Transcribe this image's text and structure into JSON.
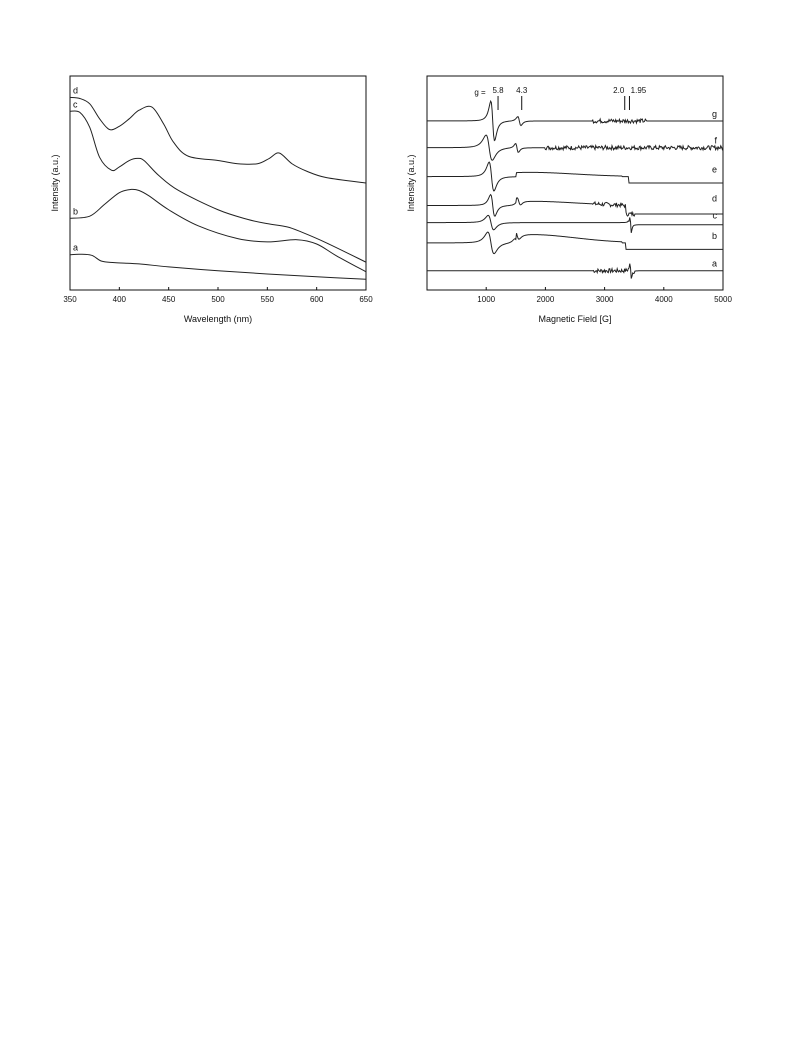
{
  "chart_data": [
    {
      "type": "line",
      "title": "",
      "xlabel": "Wavelength (nm)",
      "ylabel": "Intensity (a.u.)",
      "xlim": [
        350,
        650
      ],
      "ylim": [
        0,
        1
      ],
      "x_ticks": [
        350,
        400,
        450,
        500,
        550,
        600,
        650
      ],
      "y_ticks": [],
      "grid": false,
      "series": [
        {
          "name": "a",
          "x": [
            350,
            360,
            372,
            382,
            395,
            420,
            450,
            500,
            550,
            600,
            650
          ],
          "y": [
            0.165,
            0.167,
            0.162,
            0.135,
            0.128,
            0.122,
            0.108,
            0.09,
            0.075,
            0.062,
            0.05
          ]
        },
        {
          "name": "b",
          "x": [
            350,
            370,
            385,
            400,
            412,
            420,
            430,
            450,
            480,
            520,
            550,
            580,
            600,
            620,
            650
          ],
          "y": [
            0.335,
            0.345,
            0.4,
            0.455,
            0.47,
            0.465,
            0.44,
            0.375,
            0.3,
            0.24,
            0.225,
            0.235,
            0.215,
            0.16,
            0.085
          ]
        },
        {
          "name": "c",
          "x": [
            350,
            360,
            370,
            380,
            392,
            400,
            410,
            418,
            425,
            440,
            460,
            500,
            530,
            550,
            570,
            585,
            610,
            650
          ],
          "y": [
            0.835,
            0.83,
            0.76,
            0.62,
            0.56,
            0.575,
            0.605,
            0.615,
            0.605,
            0.535,
            0.465,
            0.375,
            0.33,
            0.31,
            0.295,
            0.27,
            0.22,
            0.13
          ]
        },
        {
          "name": "d",
          "x": [
            350,
            360,
            370,
            380,
            390,
            400,
            410,
            420,
            433,
            445,
            455,
            470,
            500,
            520,
            540,
            552,
            562,
            575,
            590,
            610,
            650
          ],
          "y": [
            0.9,
            0.895,
            0.87,
            0.8,
            0.75,
            0.765,
            0.8,
            0.84,
            0.855,
            0.775,
            0.69,
            0.625,
            0.605,
            0.59,
            0.59,
            0.615,
            0.64,
            0.59,
            0.555,
            0.525,
            0.5
          ]
        }
      ]
    },
    {
      "type": "line",
      "title": "",
      "xlabel": "Magnetic Field [G]",
      "ylabel": "Intensity (a.u.)",
      "xlim": [
        0,
        5000
      ],
      "ylim": [
        0,
        1
      ],
      "x_ticks": [
        1000,
        2000,
        3000,
        4000,
        5000
      ],
      "y_ticks": [],
      "grid": false,
      "g_markers": {
        "prefix": "g =",
        "items": [
          {
            "label": "5.8",
            "field": 1200
          },
          {
            "label": "4.3",
            "field": 1600
          },
          {
            "label": "2.0",
            "field": 3340
          },
          {
            "label": "1.95",
            "field": 3420
          }
        ]
      },
      "series": [
        {
          "name": "a",
          "baseline": 0.09,
          "peaks": [
            {
              "at": 3440,
              "amp": 0.035,
              "width": 20
            }
          ],
          "noise_from": 2800,
          "noise_to": 3500
        },
        {
          "name": "b",
          "baseline": 0.22,
          "peaks": [
            {
              "at": 1080,
              "amp": 0.06,
              "width": 90
            },
            {
              "at": 1520,
              "amp": 0.025,
              "width": 60
            }
          ],
          "hump": 0.04,
          "step_at": 3350,
          "step": -0.03
        },
        {
          "name": "c",
          "baseline": 0.315,
          "peaks": [
            {
              "at": 1080,
              "amp": 0.04,
              "width": 80
            },
            {
              "at": 3440,
              "amp": 0.045,
              "width": 18
            }
          ],
          "step_at": 3400,
          "step": -0.01
        },
        {
          "name": "d",
          "baseline": 0.395,
          "peaks": [
            {
              "at": 1110,
              "amp": 0.06,
              "width": 60
            },
            {
              "at": 1550,
              "amp": 0.02,
              "width": 50
            }
          ],
          "hump": 0.02,
          "noise_from": 2800,
          "noise_to": 3500,
          "step_at": 3350,
          "step": -0.04
        },
        {
          "name": "e",
          "baseline": 0.53,
          "peaks": [
            {
              "at": 1090,
              "amp": 0.08,
              "width": 70
            }
          ],
          "hump": 0.02,
          "step_at": 3400,
          "step": -0.03
        },
        {
          "name": "f",
          "baseline": 0.665,
          "peaks": [
            {
              "at": 1050,
              "amp": 0.07,
              "width": 90
            },
            {
              "at": 1520,
              "amp": 0.025,
              "width": 40
            }
          ],
          "noise_from": 2000,
          "noise_to": 5000
        },
        {
          "name": "g",
          "baseline": 0.79,
          "peaks": [
            {
              "at": 1110,
              "amp": 0.11,
              "width": 55
            },
            {
              "at": 1560,
              "amp": 0.025,
              "width": 45
            }
          ],
          "noise_from": 2800,
          "noise_to": 3700
        }
      ]
    }
  ]
}
